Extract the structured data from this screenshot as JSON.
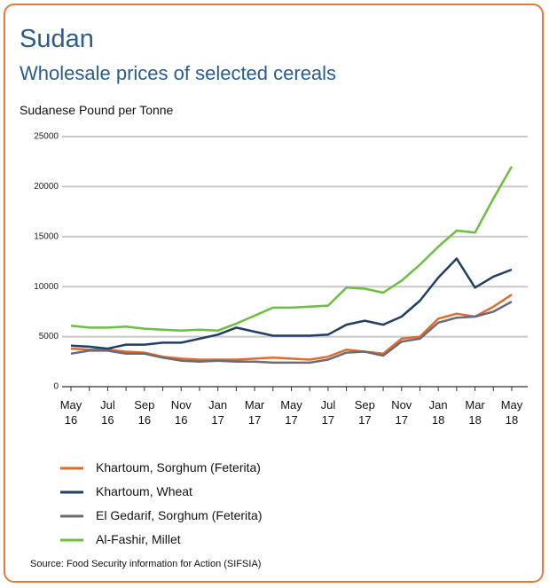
{
  "chart_data": {
    "type": "line",
    "title": "Sudan",
    "subtitle": "Wholesale prices of selected cereals",
    "y_label": "Sudanese Pound per Tonne",
    "source": "Source: Food Security information for Action (SIFSIA)",
    "categories": [
      "May 16",
      null,
      "Jul 16",
      null,
      "Sep 16",
      null,
      "Nov 16",
      null,
      "Jan 17",
      null,
      "Mar 17",
      null,
      "May 17",
      null,
      "Jul 17",
      null,
      "Sep 17",
      null,
      "Nov 17",
      null,
      "Jan 18",
      null,
      "Mar 18",
      null,
      "May 18"
    ],
    "series": [
      {
        "name": "Khartoum, Sorghum (Feterita)",
        "color": "#e06b2a",
        "values": [
          3800,
          3700,
          3700,
          3500,
          3400,
          3000,
          2800,
          2700,
          2700,
          2700,
          2800,
          2900,
          2800,
          2700,
          3000,
          3700,
          3500,
          3300,
          4800,
          5000,
          6800,
          7300,
          7000,
          8000,
          9200
        ]
      },
      {
        "name": "Khartoum, Wheat",
        "color": "#1f3f66",
        "values": [
          4100,
          4000,
          3800,
          4200,
          4200,
          4400,
          4400,
          4800,
          5200,
          5900,
          5500,
          5100,
          5100,
          5100,
          5200,
          6200,
          6600,
          6200,
          7000,
          8600,
          10900,
          12800,
          9900,
          11000,
          11700
        ]
      },
      {
        "name": "El Gedarif, Sorghum (Feterita)",
        "color": "#6b6b78",
        "values": [
          3300,
          3600,
          3600,
          3300,
          3300,
          2900,
          2600,
          2500,
          2600,
          2500,
          2500,
          2400,
          2400,
          2400,
          2700,
          3400,
          3500,
          3100,
          4500,
          4800,
          6400,
          6900,
          7000,
          7500,
          8500
        ]
      },
      {
        "name": "Al-Fashir, Millet",
        "color": "#6cbf3e",
        "values": [
          6100,
          5900,
          5900,
          6000,
          5800,
          5700,
          5600,
          5700,
          5600,
          6300,
          7100,
          7900,
          7900,
          8000,
          8100,
          9900,
          9800,
          9400,
          10600,
          12200,
          14000,
          15600,
          15400,
          18800,
          22000
        ]
      }
    ],
    "ylim": [
      0,
      25000
    ],
    "yticks": [
      0,
      5000,
      10000,
      15000,
      20000,
      25000
    ],
    "grid": true
  }
}
